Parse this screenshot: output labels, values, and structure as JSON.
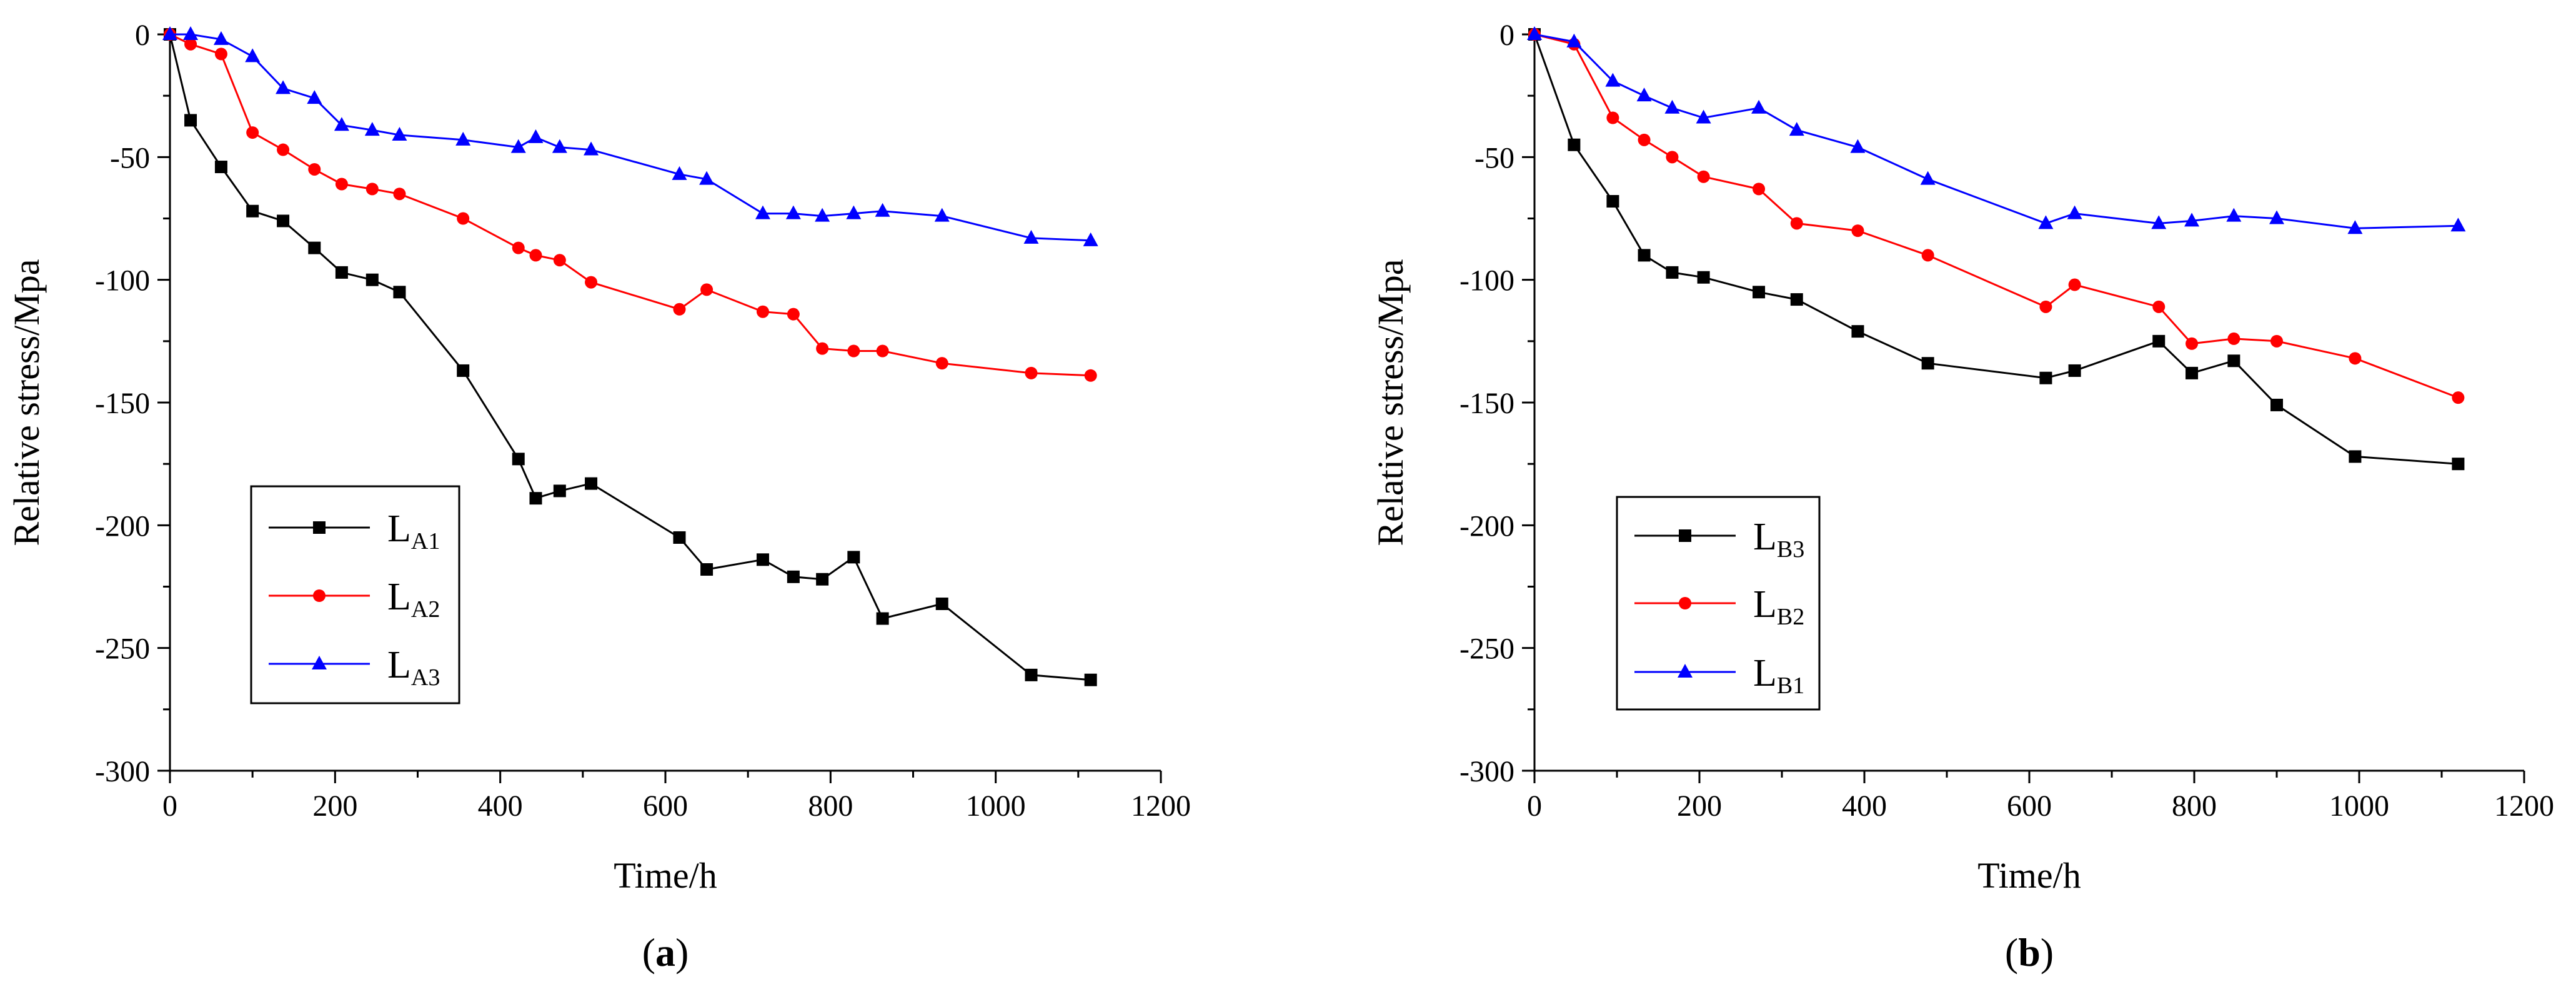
{
  "chart_data": [
    {
      "type": "line",
      "panel_label": "a",
      "xlabel": "Time/h",
      "ylabel": "Relative stress/Mpa",
      "xlim": [
        0,
        1200
      ],
      "ylim": [
        -300,
        0
      ],
      "xticks": [
        0,
        200,
        400,
        600,
        800,
        1000,
        1200
      ],
      "yticks": [
        0,
        -50,
        -100,
        -150,
        -200,
        -250,
        -300
      ],
      "grid": false,
      "legend_position": "bottom-left",
      "series": [
        {
          "name": "LA1",
          "label_main": "L",
          "label_sub": "A1",
          "color": "#000000",
          "marker": "square",
          "x": [
            0,
            25,
            62,
            100,
            137,
            175,
            208,
            245,
            278,
            355,
            422,
            443,
            472,
            510,
            617,
            650,
            718,
            755,
            790,
            828,
            863,
            935,
            1043,
            1115
          ],
          "y": [
            0,
            -35,
            -54,
            -72,
            -76,
            -87,
            -97,
            -100,
            -105,
            -137,
            -173,
            -189,
            -186,
            -183,
            -205,
            -218,
            -214,
            -221,
            -222,
            -213,
            -238,
            -232,
            -261,
            -263
          ]
        },
        {
          "name": "LA2",
          "label_main": "L",
          "label_sub": "A2",
          "color": "#ff0000",
          "marker": "circle",
          "x": [
            0,
            25,
            62,
            100,
            137,
            175,
            208,
            245,
            278,
            355,
            422,
            443,
            472,
            510,
            617,
            650,
            718,
            755,
            790,
            828,
            863,
            935,
            1043,
            1115
          ],
          "y": [
            0,
            -4,
            -8,
            -40,
            -47,
            -55,
            -61,
            -63,
            -65,
            -75,
            -87,
            -90,
            -92,
            -101,
            -112,
            -104,
            -113,
            -114,
            -128,
            -129,
            -129,
            -134,
            -138,
            -139
          ]
        },
        {
          "name": "LA3",
          "label_main": "L",
          "label_sub": "A3",
          "color": "#0000ff",
          "marker": "triangle",
          "x": [
            0,
            25,
            62,
            100,
            137,
            175,
            208,
            245,
            278,
            355,
            422,
            443,
            472,
            510,
            617,
            650,
            718,
            755,
            790,
            828,
            863,
            935,
            1043,
            1115
          ],
          "y": [
            0,
            0,
            -2,
            -9,
            -22,
            -26,
            -37,
            -39,
            -41,
            -43,
            -46,
            -42,
            -46,
            -47,
            -57,
            -59,
            -73,
            -73,
            -74,
            -73,
            -72,
            -74,
            -83,
            -84
          ]
        }
      ]
    },
    {
      "type": "line",
      "panel_label": "b",
      "xlabel": "Time/h",
      "ylabel": "Relative stress/Mpa",
      "xlim": [
        0,
        1200
      ],
      "ylim": [
        -300,
        0
      ],
      "xticks": [
        0,
        200,
        400,
        600,
        800,
        1000,
        1200
      ],
      "yticks": [
        0,
        -50,
        -100,
        -150,
        -200,
        -250,
        -300
      ],
      "grid": false,
      "legend_position": "bottom-left",
      "series": [
        {
          "name": "LB3",
          "label_main": "L",
          "label_sub": "B3",
          "color": "#000000",
          "marker": "square",
          "x": [
            0,
            48,
            95,
            133,
            167,
            205,
            272,
            318,
            392,
            477,
            620,
            655,
            757,
            797,
            848,
            900,
            995,
            1120
          ],
          "y": [
            0,
            -45,
            -68,
            -90,
            -97,
            -99,
            -105,
            -108,
            -121,
            -134,
            -140,
            -137,
            -125,
            -138,
            -133,
            -151,
            -172,
            -175
          ]
        },
        {
          "name": "LB2",
          "label_main": "L",
          "label_sub": "B2",
          "color": "#ff0000",
          "marker": "circle",
          "x": [
            0,
            48,
            95,
            133,
            167,
            205,
            272,
            318,
            392,
            477,
            620,
            655,
            757,
            797,
            848,
            900,
            995,
            1120
          ],
          "y": [
            0,
            -4,
            -34,
            -43,
            -50,
            -58,
            -63,
            -77,
            -80,
            -90,
            -111,
            -102,
            -111,
            -126,
            -124,
            -125,
            -132,
            -148
          ]
        },
        {
          "name": "LB1",
          "label_main": "L",
          "label_sub": "B1",
          "color": "#0000ff",
          "marker": "triangle",
          "x": [
            0,
            48,
            95,
            133,
            167,
            205,
            272,
            318,
            392,
            477,
            620,
            655,
            757,
            797,
            848,
            900,
            995,
            1120
          ],
          "y": [
            0,
            -3,
            -19,
            -25,
            -30,
            -34,
            -30,
            -39,
            -46,
            -59,
            -77,
            -73,
            -77,
            -76,
            -74,
            -75,
            -79,
            -78
          ]
        }
      ]
    }
  ]
}
